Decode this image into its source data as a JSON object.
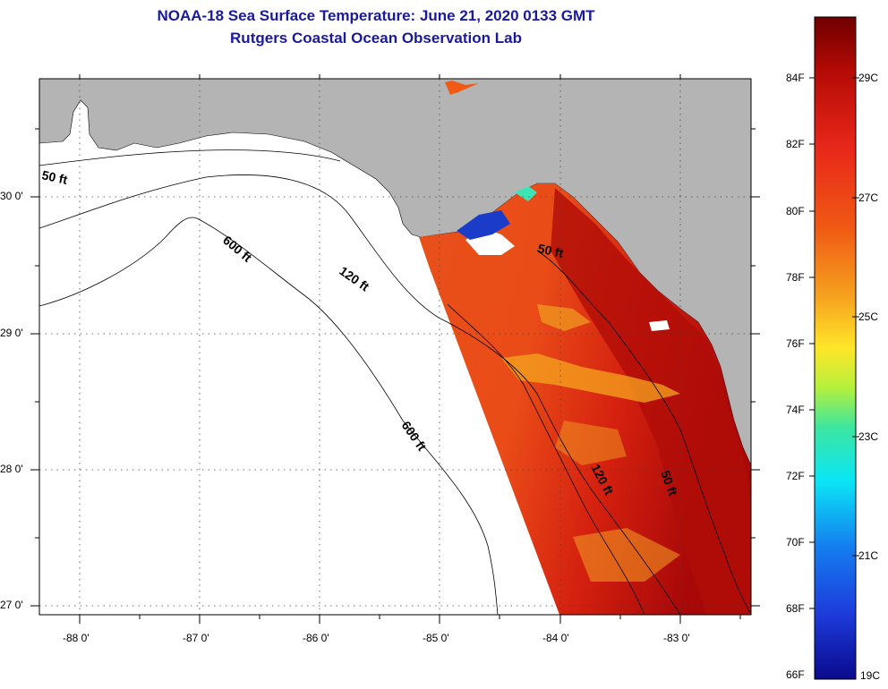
{
  "header": {
    "title": "NOAA-18 Sea Surface Temperature:  June 21, 2020 0133 GMT",
    "subtitle": "Rutgers Coastal Ocean Observation Lab"
  },
  "map": {
    "lat_labels": [
      "30 0'",
      "29 0'",
      "28 0'",
      "27 0'"
    ],
    "lon_labels": [
      "-88 0'",
      "-87 0'",
      "-86 0'",
      "-85 0'",
      "-84 0'",
      "-83 0'"
    ],
    "contour_labels": {
      "c50_west": "50 ft",
      "c50_east_north": "50 ft",
      "c50_east_south": "50 ft",
      "c120_west": "120 ft",
      "c120_east": "120 ft",
      "c600_north": "600 ft",
      "c600_south": "600 ft"
    },
    "colors": {
      "land": "#b4b4b4",
      "water": "#ffffff",
      "sst_base": "#e8421a"
    }
  },
  "colorbar": {
    "fahrenheit_labels": [
      "84F",
      "82F",
      "80F",
      "78F",
      "76F",
      "74F",
      "72F",
      "70F",
      "68F",
      "66F"
    ],
    "celsius_labels": [
      "29C",
      "27C",
      "25C",
      "23C",
      "21C",
      "19C"
    ],
    "gradient": [
      "#7a0000",
      "#c8140a",
      "#f03c0f",
      "#f57d14",
      "#ffc81e",
      "#e6f01e",
      "#46e6a0",
      "#14d2f0",
      "#1e82f0",
      "#1e3cd2",
      "#0a0a96"
    ]
  }
}
